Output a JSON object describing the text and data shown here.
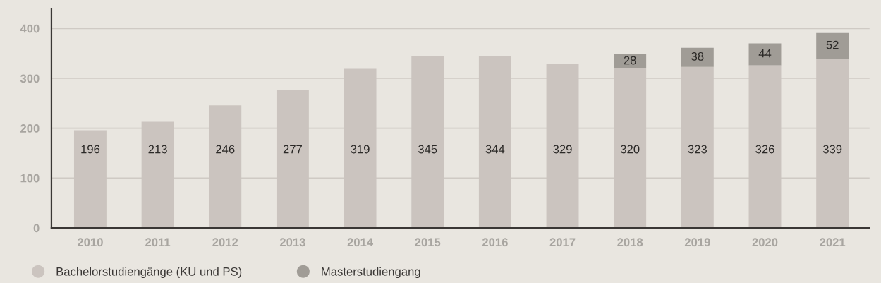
{
  "chart_data": {
    "type": "bar",
    "stacked": true,
    "categories": [
      "2010",
      "2011",
      "2012",
      "2013",
      "2014",
      "2015",
      "2016",
      "2017",
      "2018",
      "2019",
      "2020",
      "2021"
    ],
    "series": [
      {
        "name": "Bachelorstudiengänge (KU und PS)",
        "color": "#cbc4bf",
        "values": [
          196,
          213,
          246,
          277,
          319,
          345,
          344,
          329,
          320,
          323,
          326,
          339
        ]
      },
      {
        "name": "Masterstudiengang",
        "color": "#a09c96",
        "values": [
          null,
          null,
          null,
          null,
          null,
          null,
          null,
          null,
          28,
          38,
          44,
          52
        ]
      }
    ],
    "ylim": [
      0,
      440
    ],
    "yticks": [
      0,
      100,
      200,
      300,
      400
    ],
    "grid": "y",
    "legend": "bottom left",
    "data_labels": true
  }
}
